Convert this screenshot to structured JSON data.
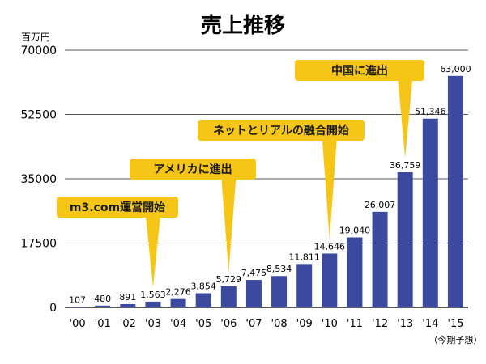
{
  "chart_data": {
    "type": "bar",
    "title": "売上推移",
    "unit_label": "百万円",
    "categories": [
      "'00",
      "'01",
      "'02",
      "'03",
      "'04",
      "'05",
      "'06",
      "'07",
      "'08",
      "'09",
      "'10",
      "'11",
      "'12",
      "'13",
      "'14",
      "'15"
    ],
    "values": [
      107,
      480,
      891,
      1563,
      2276,
      3854,
      5729,
      7475,
      8534,
      11811,
      14646,
      19040,
      26007,
      36759,
      51346,
      63000
    ],
    "value_labels": [
      "107",
      "480",
      "891",
      "1,563",
      "2,276",
      "3,854",
      "5,729",
      "7,475",
      "8,534",
      "11,811",
      "14,646",
      "19,040",
      "26,007",
      "36,759",
      "51,346",
      "63,000"
    ],
    "ylim": [
      0,
      70000
    ],
    "yticks": [
      0,
      17500,
      35000,
      52500,
      70000
    ],
    "ytick_labels": [
      "0",
      "17500",
      "35000",
      "52500",
      "70000"
    ],
    "grid": true,
    "bar_color": "#3b4a9e",
    "callout_color": "#f5c518",
    "note": "（今期予想）",
    "note_category": "'15",
    "annotations": [
      {
        "text": "m3.com運営開始",
        "category": "'03"
      },
      {
        "text": "アメリカに進出",
        "category": "'06"
      },
      {
        "text": "ネットとリアルの融合開始",
        "category": "'10"
      },
      {
        "text": "中国に進出",
        "category": "'13"
      }
    ]
  }
}
